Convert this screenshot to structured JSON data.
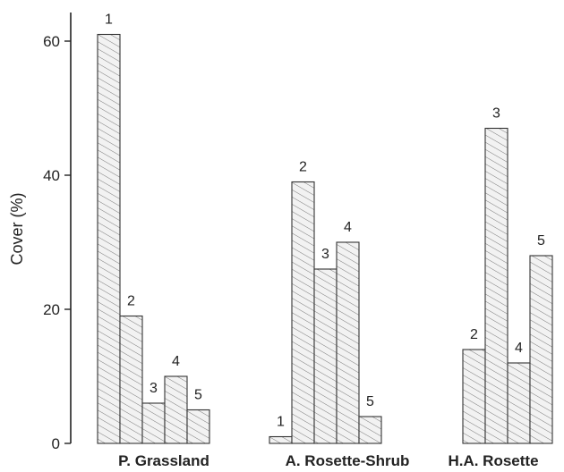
{
  "chart_data": {
    "type": "bar",
    "ylabel": "Cover (%)",
    "xlabel": "",
    "ylim": [
      0,
      65
    ],
    "yticks": [
      0,
      20,
      40,
      60
    ],
    "grid": false,
    "groups": [
      {
        "name": "P. Grassland",
        "bars": [
          {
            "label": "1",
            "value": 61
          },
          {
            "label": "2",
            "value": 19
          },
          {
            "label": "3",
            "value": 6
          },
          {
            "label": "4",
            "value": 10
          },
          {
            "label": "5",
            "value": 5
          }
        ]
      },
      {
        "name": "A. Rosette-Shrub",
        "bars": [
          {
            "label": "1",
            "value": 1
          },
          {
            "label": "2",
            "value": 39
          },
          {
            "label": "3",
            "value": 26
          },
          {
            "label": "4",
            "value": 30
          },
          {
            "label": "5",
            "value": 4
          }
        ]
      },
      {
        "name": "H.A. Rosette",
        "bars": [
          {
            "label": "2",
            "value": 14
          },
          {
            "label": "3",
            "value": 47
          },
          {
            "label": "4",
            "value": 12
          },
          {
            "label": "5",
            "value": 28
          }
        ]
      }
    ]
  }
}
